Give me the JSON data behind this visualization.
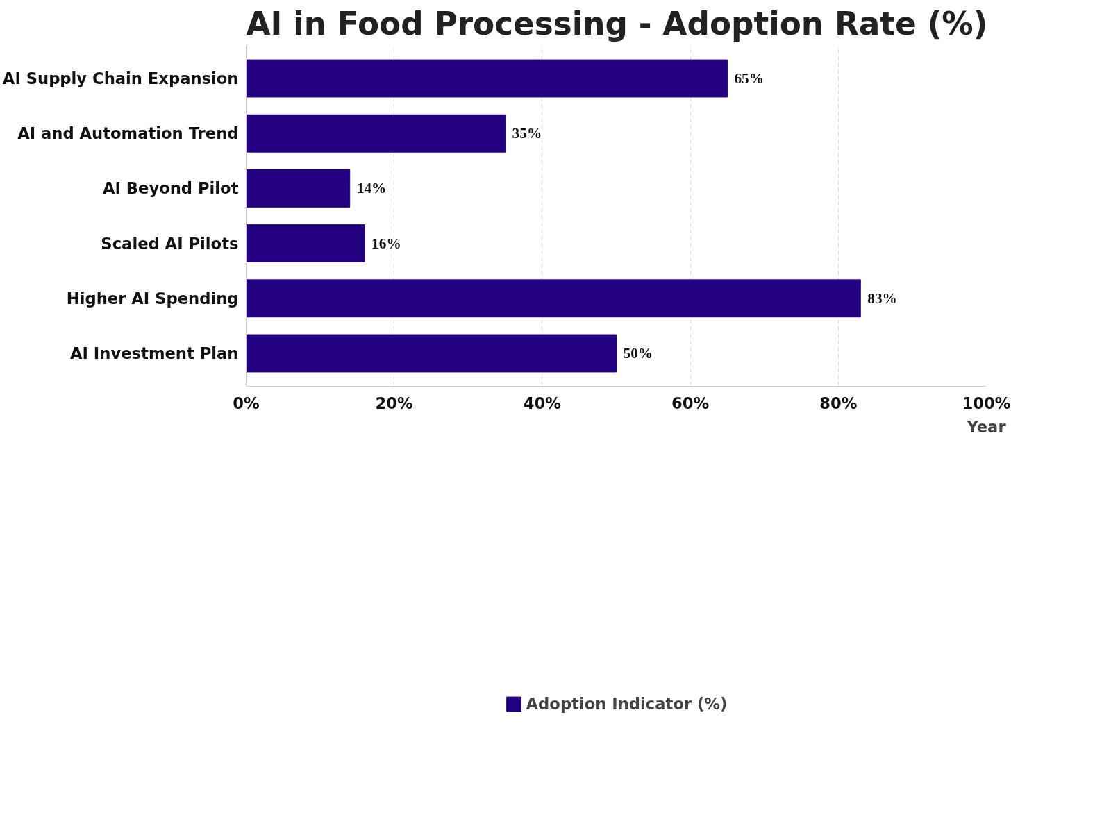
{
  "chart_data": {
    "type": "bar",
    "orientation": "horizontal",
    "title": "AI in Food Processing - Adoption Rate (%)",
    "xlabel": "Year",
    "categories": [
      "AI Supply Chain Expansion",
      "AI and Automation Trend",
      "AI Beyond Pilot",
      "Scaled AI Pilots",
      "Higher AI Spending",
      "AI Investment Plan"
    ],
    "series": [
      {
        "name": "Adoption Indicator (%)",
        "color": "#22007f",
        "values": [
          65,
          35,
          14,
          16,
          83,
          50
        ],
        "value_labels": [
          "65%",
          "35%",
          "14%",
          "16%",
          "83%",
          "50%"
        ]
      }
    ],
    "xlim": [
      0,
      100
    ],
    "xticks": [
      {
        "value": 0,
        "label": "0%"
      },
      {
        "value": 20,
        "label": "20%"
      },
      {
        "value": 40,
        "label": "40%"
      },
      {
        "value": 60,
        "label": "60%"
      },
      {
        "value": 80,
        "label": "80%"
      },
      {
        "value": 100,
        "label": "100%"
      }
    ],
    "grid": "x",
    "legend": "bottom"
  }
}
